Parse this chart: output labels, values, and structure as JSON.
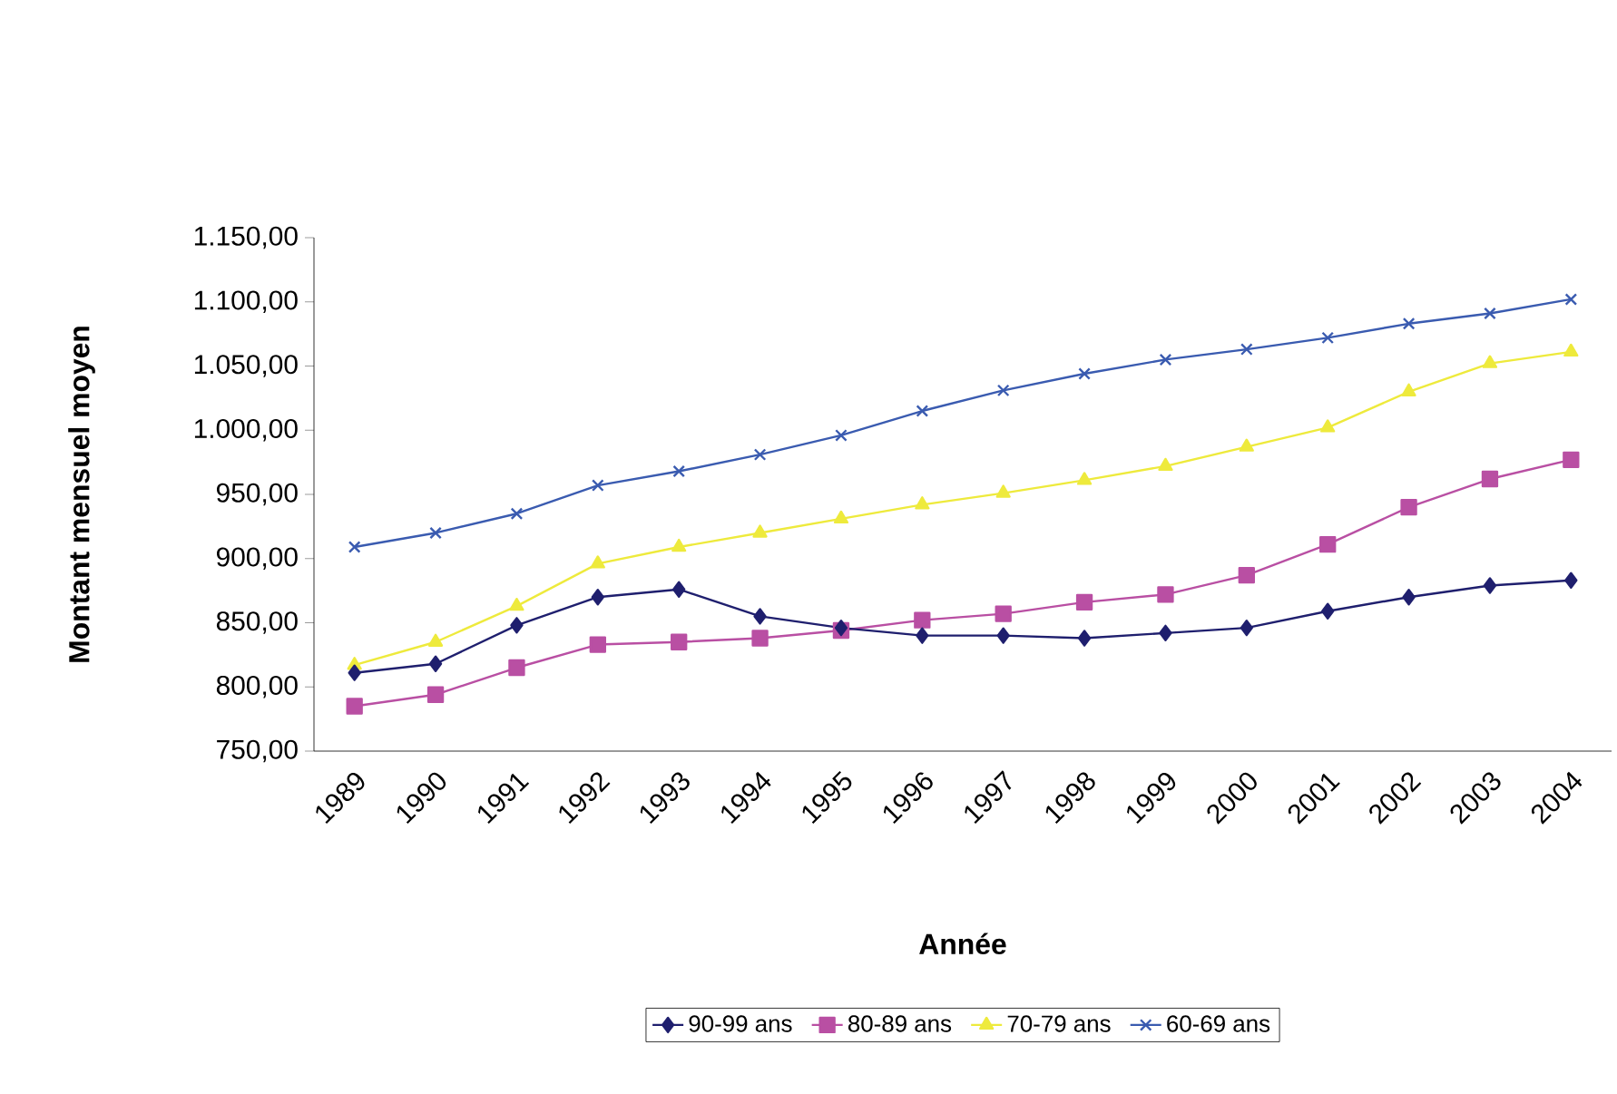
{
  "chart_data": {
    "type": "line",
    "xlabel": "Année",
    "ylabel": "Montant mensuel moyen",
    "categories": [
      "1989",
      "1990",
      "1991",
      "1992",
      "1993",
      "1994",
      "1995",
      "1996",
      "1997",
      "1998",
      "1999",
      "2000",
      "2001",
      "2002",
      "2003",
      "2004"
    ],
    "ylim": [
      750,
      1150
    ],
    "yticks": [
      {
        "value": 750,
        "label": "750,00"
      },
      {
        "value": 800,
        "label": "800,00"
      },
      {
        "value": 850,
        "label": "850,00"
      },
      {
        "value": 900,
        "label": "900,00"
      },
      {
        "value": 950,
        "label": "950,00"
      },
      {
        "value": 1000,
        "label": "1.000,00"
      },
      {
        "value": 1050,
        "label": "1.050,00"
      },
      {
        "value": 1100,
        "label": "1.100,00"
      },
      {
        "value": 1150,
        "label": "1.150,00"
      }
    ],
    "legend": "bottom",
    "grid": false,
    "line_style": "solid",
    "series": [
      {
        "name": "90-99 ans",
        "color": "#1f1f6e",
        "marker": "diamond",
        "values": [
          811,
          818,
          848,
          870,
          876,
          855,
          846,
          840,
          840,
          838,
          842,
          846,
          859,
          870,
          879,
          883
        ]
      },
      {
        "name": "80-89 ans",
        "color": "#b94fa3",
        "marker": "square",
        "values": [
          785,
          794,
          815,
          833,
          835,
          838,
          844,
          852,
          857,
          866,
          872,
          887,
          911,
          940,
          962,
          977
        ]
      },
      {
        "name": "70-79 ans",
        "color": "#eeea3c",
        "marker": "triangle",
        "values": [
          817,
          835,
          863,
          896,
          909,
          920,
          931,
          942,
          951,
          961,
          972,
          987,
          1002,
          1030,
          1052,
          1061
        ]
      },
      {
        "name": "60-69 ans",
        "color": "#3a5bb0",
        "marker": "cross",
        "values": [
          909,
          920,
          935,
          957,
          968,
          981,
          996,
          1015,
          1031,
          1044,
          1055,
          1063,
          1072,
          1083,
          1091,
          1102
        ]
      }
    ]
  }
}
